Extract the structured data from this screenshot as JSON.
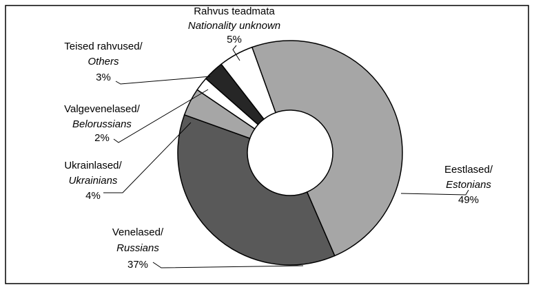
{
  "chart_data": {
    "type": "donut",
    "labels": [
      {
        "et": "Eestlased/",
        "en": "Estonians"
      },
      {
        "et": "Venelased/",
        "en": "Russians"
      },
      {
        "et": "Ukrainlased/",
        "en": "Ukrainians"
      },
      {
        "et": "Valgevenelased/",
        "en": "Belorussians"
      },
      {
        "et": "Teised rahvused/",
        "en": "Others"
      },
      {
        "et": "Rahvus teadmata",
        "en": "Nationality unknown"
      }
    ],
    "values": [
      49,
      37,
      4,
      2,
      3,
      5
    ],
    "value_labels": [
      "49%",
      "37%",
      "4%",
      "2%",
      "3%",
      "5%"
    ],
    "colors": [
      "#a6a6a6",
      "#595959",
      "#a6a6a6",
      "#ffffff",
      "#262626",
      "#ffffff"
    ]
  }
}
